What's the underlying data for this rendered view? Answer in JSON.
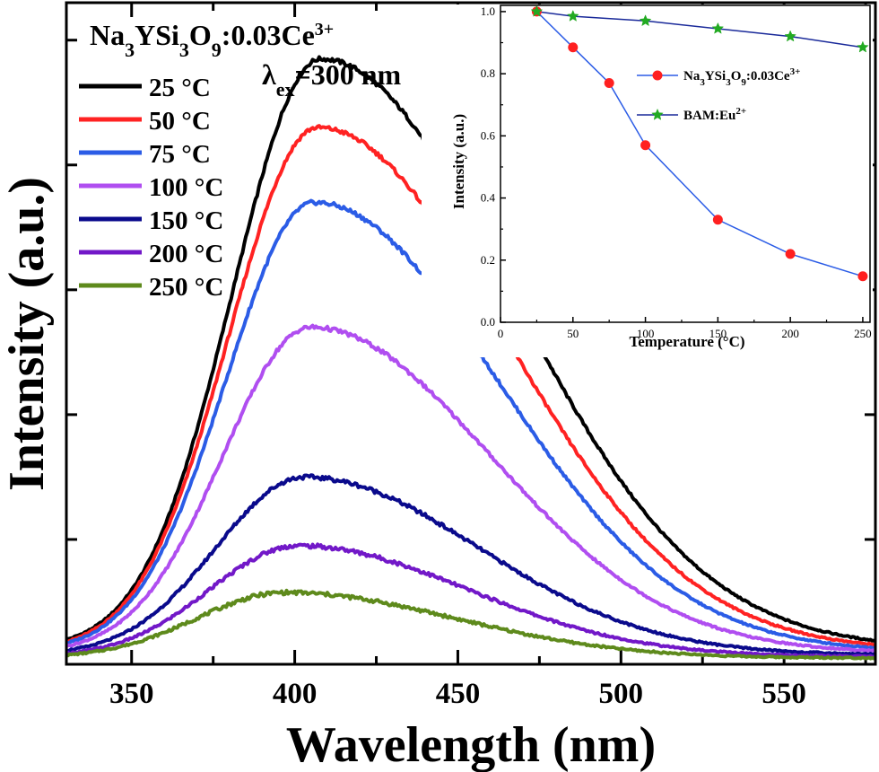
{
  "chart_data": [
    {
      "type": "line",
      "title": "",
      "sample_label": {
        "base": "Na",
        "parts": [
          [
            "3",
            "sub"
          ],
          [
            "YSi",
            "n"
          ],
          [
            "3",
            "sub"
          ],
          [
            "O",
            "n"
          ],
          [
            "9",
            "sub"
          ],
          [
            ":0.03Ce",
            "n"
          ],
          [
            "3+",
            "sup"
          ]
        ]
      },
      "excitation_label": {
        "lambda": "λ",
        "sub": "ex",
        "rest": "=300 nm"
      },
      "xlabel": "Wavelength (nm)",
      "ylabel": "Intensity (a.u.)",
      "xlim": [
        330,
        578
      ],
      "ylim": [
        0,
        1.06
      ],
      "xticks": [
        350,
        400,
        450,
        500,
        550
      ],
      "y_tick_labels": false,
      "legend_position": "top-left",
      "series": [
        {
          "name": "25 °C",
          "color": "#000000",
          "peak_x": 408,
          "peak_y": 0.97,
          "sigma_left": 27,
          "sigma_right": 58,
          "baseline": 0.025
        },
        {
          "name": "50 °C",
          "color": "#ff2222",
          "peak_x": 407,
          "peak_y": 0.86,
          "sigma_left": 27,
          "sigma_right": 57,
          "baseline": 0.022
        },
        {
          "name": "75 °C",
          "color": "#2b5ce6",
          "peak_x": 406,
          "peak_y": 0.74,
          "sigma_left": 27,
          "sigma_right": 56,
          "baseline": 0.02
        },
        {
          "name": "100 °C",
          "color": "#b04ef0",
          "peak_x": 405,
          "peak_y": 0.54,
          "sigma_left": 27,
          "sigma_right": 55,
          "baseline": 0.018
        },
        {
          "name": "150 °C",
          "color": "#0a0a8c",
          "peak_x": 403,
          "peak_y": 0.3,
          "sigma_left": 27,
          "sigma_right": 53,
          "baseline": 0.015
        },
        {
          "name": "200 °C",
          "color": "#7218c8",
          "peak_x": 401,
          "peak_y": 0.19,
          "sigma_left": 27,
          "sigma_right": 52,
          "baseline": 0.012
        },
        {
          "name": "250 °C",
          "color": "#5e8a1c",
          "peak_x": 397,
          "peak_y": 0.115,
          "sigma_left": 27,
          "sigma_right": 52,
          "baseline": 0.01
        }
      ]
    },
    {
      "type": "line",
      "title": "",
      "xlabel": "Temperature (°C)",
      "ylabel": "Intensity (a.u.)",
      "xlim": [
        0,
        255
      ],
      "ylim": [
        0,
        1.02
      ],
      "xticks": [
        0,
        50,
        100,
        150,
        200,
        250
      ],
      "yticks": [
        0.0,
        0.2,
        0.4,
        0.6,
        0.8,
        1.0
      ],
      "legend_position": "center-right",
      "series": [
        {
          "name": "Na3YSi3O9:0.03Ce3+",
          "legend_parts": [
            [
              "Na",
              "n"
            ],
            [
              "3",
              "sub"
            ],
            [
              "YSi",
              "n"
            ],
            [
              "3",
              "sub"
            ],
            [
              "O",
              "n"
            ],
            [
              "9",
              "sub"
            ],
            [
              ":0.03Ce",
              "n"
            ],
            [
              "3+",
              "sup"
            ]
          ],
          "color": "#2b5ce6",
          "marker": "circle",
          "marker_color": "#ff2020",
          "x": [
            25,
            50,
            75,
            100,
            150,
            200,
            250
          ],
          "y": [
            1.0,
            0.885,
            0.77,
            0.57,
            0.33,
            0.22,
            0.148
          ]
        },
        {
          "name": "BAM:Eu2+",
          "legend_parts": [
            [
              "BAM:Eu",
              "n"
            ],
            [
              "2+",
              "sup"
            ]
          ],
          "color": "#1a2a9a",
          "marker": "star",
          "marker_color": "#22aa22",
          "x": [
            25,
            50,
            100,
            150,
            200,
            250
          ],
          "y": [
            1.0,
            0.985,
            0.97,
            0.945,
            0.92,
            0.885
          ]
        }
      ]
    }
  ]
}
